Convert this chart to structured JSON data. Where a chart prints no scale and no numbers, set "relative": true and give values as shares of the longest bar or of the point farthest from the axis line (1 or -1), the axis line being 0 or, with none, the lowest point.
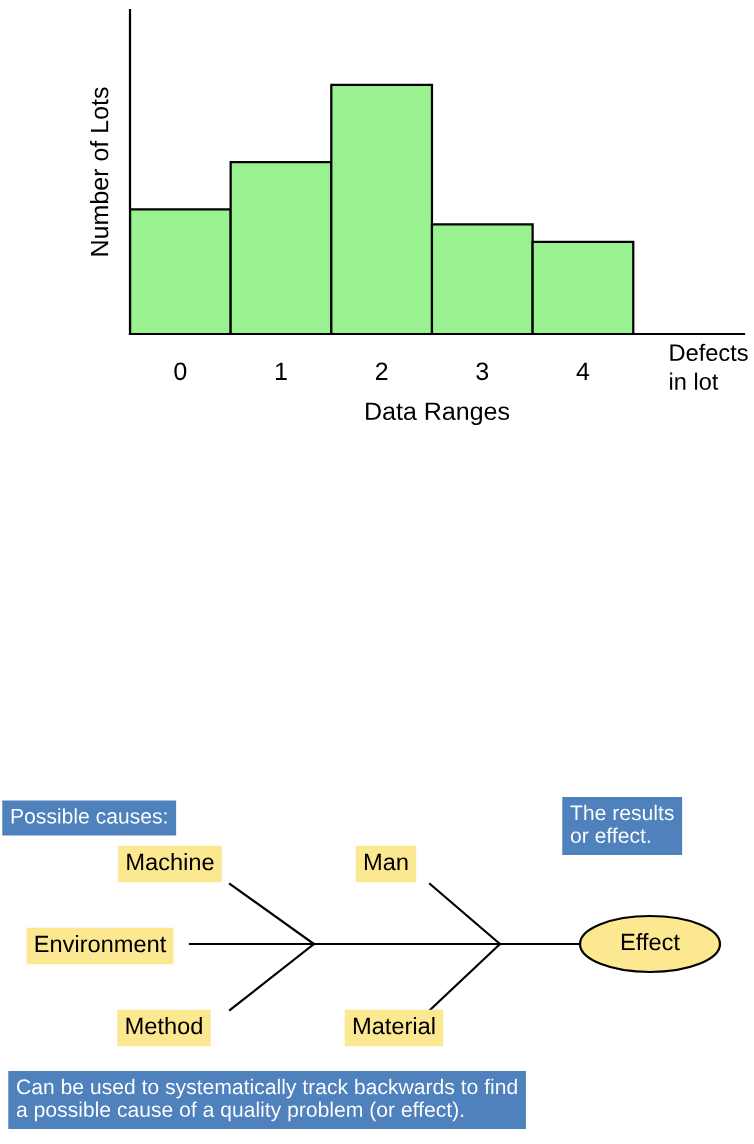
{
  "chart_data": [
    {
      "type": "bar",
      "relative": true,
      "xlabel": "Data Ranges",
      "ylabel": "Number of Lots",
      "categories": [
        "0",
        "1",
        "2",
        "3",
        "4"
      ],
      "values": [
        0.5,
        0.69,
        1.0,
        0.44,
        0.37
      ],
      "color": "#99f28f",
      "annotations": [
        "Defects\nin lot"
      ]
    },
    {
      "type": "other",
      "annotations": [
        "Possible causes:",
        "The results\nor effect.",
        "Machine",
        "Man",
        "Environment",
        "Effect",
        "Method",
        "Material",
        "Can be used to systematically track backwards to find\na possible cause of a quality problem (or effect)."
      ]
    }
  ]
}
